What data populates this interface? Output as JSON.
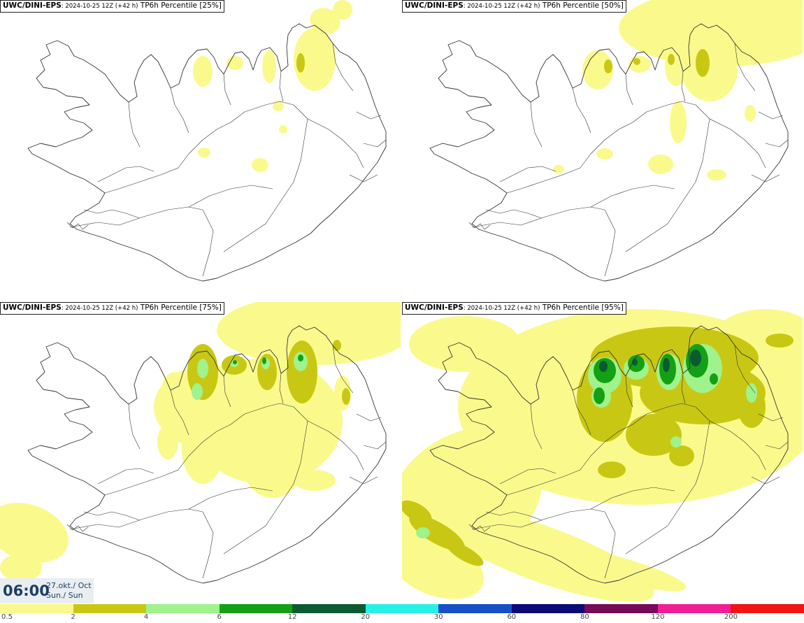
{
  "panels": [
    {
      "model": "UWC/DINI-EPS",
      "run": ": 2024-10-25 12Z (+42 h)",
      "field": " TP6h Percentile [25%]"
    },
    {
      "model": "UWC/DINI-EPS",
      "run": ": 2024-10-25 12Z (+42 h)",
      "field": " TP6h Percentile [50%]"
    },
    {
      "model": "UWC/DINI-EPS",
      "run": ": 2024-10-25 12Z (+42 h)",
      "field": " TP6h Percentile [75%]"
    },
    {
      "model": "UWC/DINI-EPS",
      "run": ": 2024-10-25 12Z (+42 h)",
      "field": " TP6h Percentile [95%]"
    }
  ],
  "valid_time": {
    "time": "06:00",
    "date_line1": "27.okt./ Oct",
    "date_line2": "Sun./ Sun"
  },
  "colors": {
    "light_yellow": "#fafa8c",
    "olive": "#c8c814",
    "light_green": "#a0f28c",
    "green": "#14a014",
    "dark_green": "#0a5a32",
    "coast": "#333333"
  },
  "legend": {
    "colors": [
      "#fafa8c",
      "#c8c814",
      "#a0f28c",
      "#14a014",
      "#0a5a32",
      "#28f0e6",
      "#1450c8",
      "#0a0a78",
      "#780a5a",
      "#f01e96",
      "#f01414"
    ],
    "ticks": [
      "0.5",
      "2",
      "4",
      "6",
      "12",
      "20",
      "30",
      "60",
      "80",
      "120",
      "200"
    ]
  }
}
